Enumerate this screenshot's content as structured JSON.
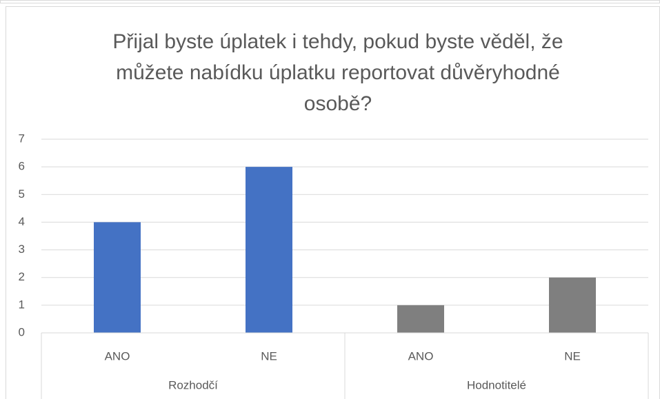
{
  "chart_data": {
    "type": "bar",
    "title": [
      "Přijal byste úplatek i tehdy, pokud byste věděl, že",
      "můžete nabídku úplatku reportovat důvěryhodné",
      "osobě?"
    ],
    "series": [
      {
        "name": "Rozhodčí",
        "color": "#4472c4",
        "categories": [
          "ANO",
          "NE"
        ],
        "values": [
          4,
          6
        ]
      },
      {
        "name": "Hodnotitelé",
        "color": "#7f7f7f",
        "categories": [
          "ANO",
          "NE"
        ],
        "values": [
          1,
          2
        ]
      }
    ],
    "ylim": [
      0,
      7
    ],
    "yticks": [
      0,
      1,
      2,
      3,
      4,
      5,
      6,
      7
    ],
    "grid": true
  }
}
